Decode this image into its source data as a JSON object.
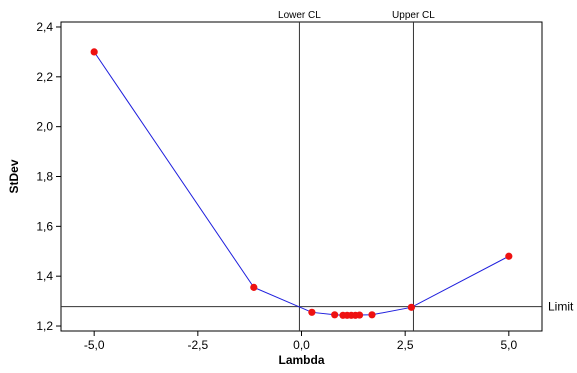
{
  "chart_data": {
    "type": "line",
    "title": "",
    "xlabel": "Lambda",
    "ylabel": "StDev",
    "xlim": [
      -5.8,
      5.8
    ],
    "ylim": [
      1.18,
      2.42
    ],
    "x_ticks": [
      -5.0,
      -2.5,
      0.0,
      2.5,
      5.0
    ],
    "x_tick_labels": [
      "-5,0",
      "-2,5",
      "0,0",
      "2,5",
      "5,0"
    ],
    "y_ticks": [
      1.2,
      1.4,
      1.6,
      1.8,
      2.0,
      2.2,
      2.4
    ],
    "y_tick_labels": [
      "1,2",
      "1,4",
      "1,6",
      "1,8",
      "2,0",
      "2,2",
      "2,4"
    ],
    "grid": false,
    "series": [
      {
        "x": [
          -5.0,
          -1.15,
          0.25,
          0.8,
          1.0,
          1.1,
          1.2,
          1.3,
          1.4,
          1.7,
          2.65,
          5.0
        ],
        "y": [
          2.3,
          1.355,
          1.255,
          1.245,
          1.243,
          1.243,
          1.243,
          1.243,
          1.244,
          1.245,
          1.275,
          1.48
        ],
        "line_color": "#1f1fdd",
        "marker_color": "#ee1111"
      }
    ],
    "vertical_lines": [
      {
        "x": -0.05,
        "label": "Lower CL"
      },
      {
        "x": 2.7,
        "label": "Upper CL"
      }
    ],
    "horizontal_lines": [
      {
        "y": 1.278,
        "label": "Limit"
      }
    ]
  }
}
